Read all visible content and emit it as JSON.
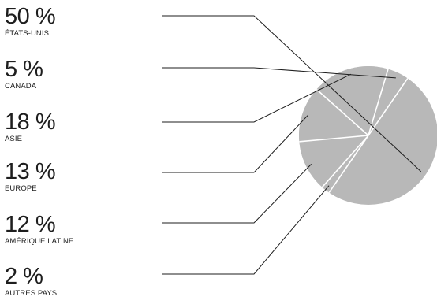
{
  "chart_data": {
    "type": "pie",
    "slices": [
      {
        "label": "ÉTATS-UNIS",
        "value": 50,
        "value_text": "50 %"
      },
      {
        "label": "CANADA",
        "value": 5,
        "value_text": "5 %"
      },
      {
        "label": "ASIE",
        "value": 18,
        "value_text": "18 %"
      },
      {
        "label": "EUROPE",
        "value": 13,
        "value_text": "13 %"
      },
      {
        "label": "AMÉRIQUE LATINE",
        "value": 12,
        "value_text": "12 %"
      },
      {
        "label": "AUTRES PAYS",
        "value": 2,
        "value_text": "2 %"
      }
    ],
    "colors": {
      "fill": "#b8b8b8",
      "divider": "#ffffff",
      "leader": "#1e1e1e"
    },
    "legend": "left",
    "direction": "counterclockwise"
  }
}
